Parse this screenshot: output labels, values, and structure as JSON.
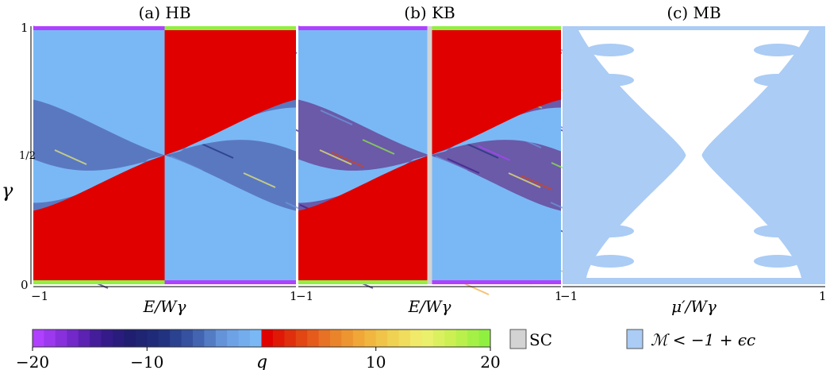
{
  "chart_data": {
    "type": "heatmap",
    "panels": [
      {
        "title": "(a) HB",
        "xlabel": "E/Wγ",
        "xticks": [
          "−1",
          "1"
        ],
        "xlim": [
          -1,
          1
        ]
      },
      {
        "title": "(b) KB",
        "xlabel": "E/Wγ",
        "xticks": [
          "−1",
          "1"
        ],
        "xlim": [
          -1,
          1
        ]
      },
      {
        "title": "(c) MB",
        "xlabel": "μ′/Wγ",
        "xticks": [
          "−1",
          "1"
        ],
        "xlim": [
          -1,
          1
        ]
      }
    ],
    "ylabel": "γ",
    "yticks": [
      "0",
      "1/2",
      "1"
    ],
    "ylim": [
      0,
      1
    ],
    "colorbar": {
      "label": "q",
      "range": [
        -20,
        20
      ],
      "ticks": [
        "−20",
        "−10",
        "10",
        "20"
      ],
      "tick_values": [
        -20,
        -10,
        10,
        20
      ],
      "negative_colors": [
        "#b040ff",
        "#7a2ad0",
        "#3a1a90",
        "#1e1e6e",
        "#20307e",
        "#3a5aa8",
        "#6a9ae0",
        "#7ab8f5"
      ],
      "positive_colors": [
        "#e00000",
        "#e04010",
        "#e87a28",
        "#f0aa38",
        "#f0d050",
        "#f0f070",
        "#c8f050",
        "#90f040"
      ]
    },
    "legend": [
      {
        "label": "SC",
        "color": "#d3d3d3"
      },
      {
        "label": "ℳ < −1 + ϵc",
        "color": "#aaccf5"
      }
    ]
  }
}
